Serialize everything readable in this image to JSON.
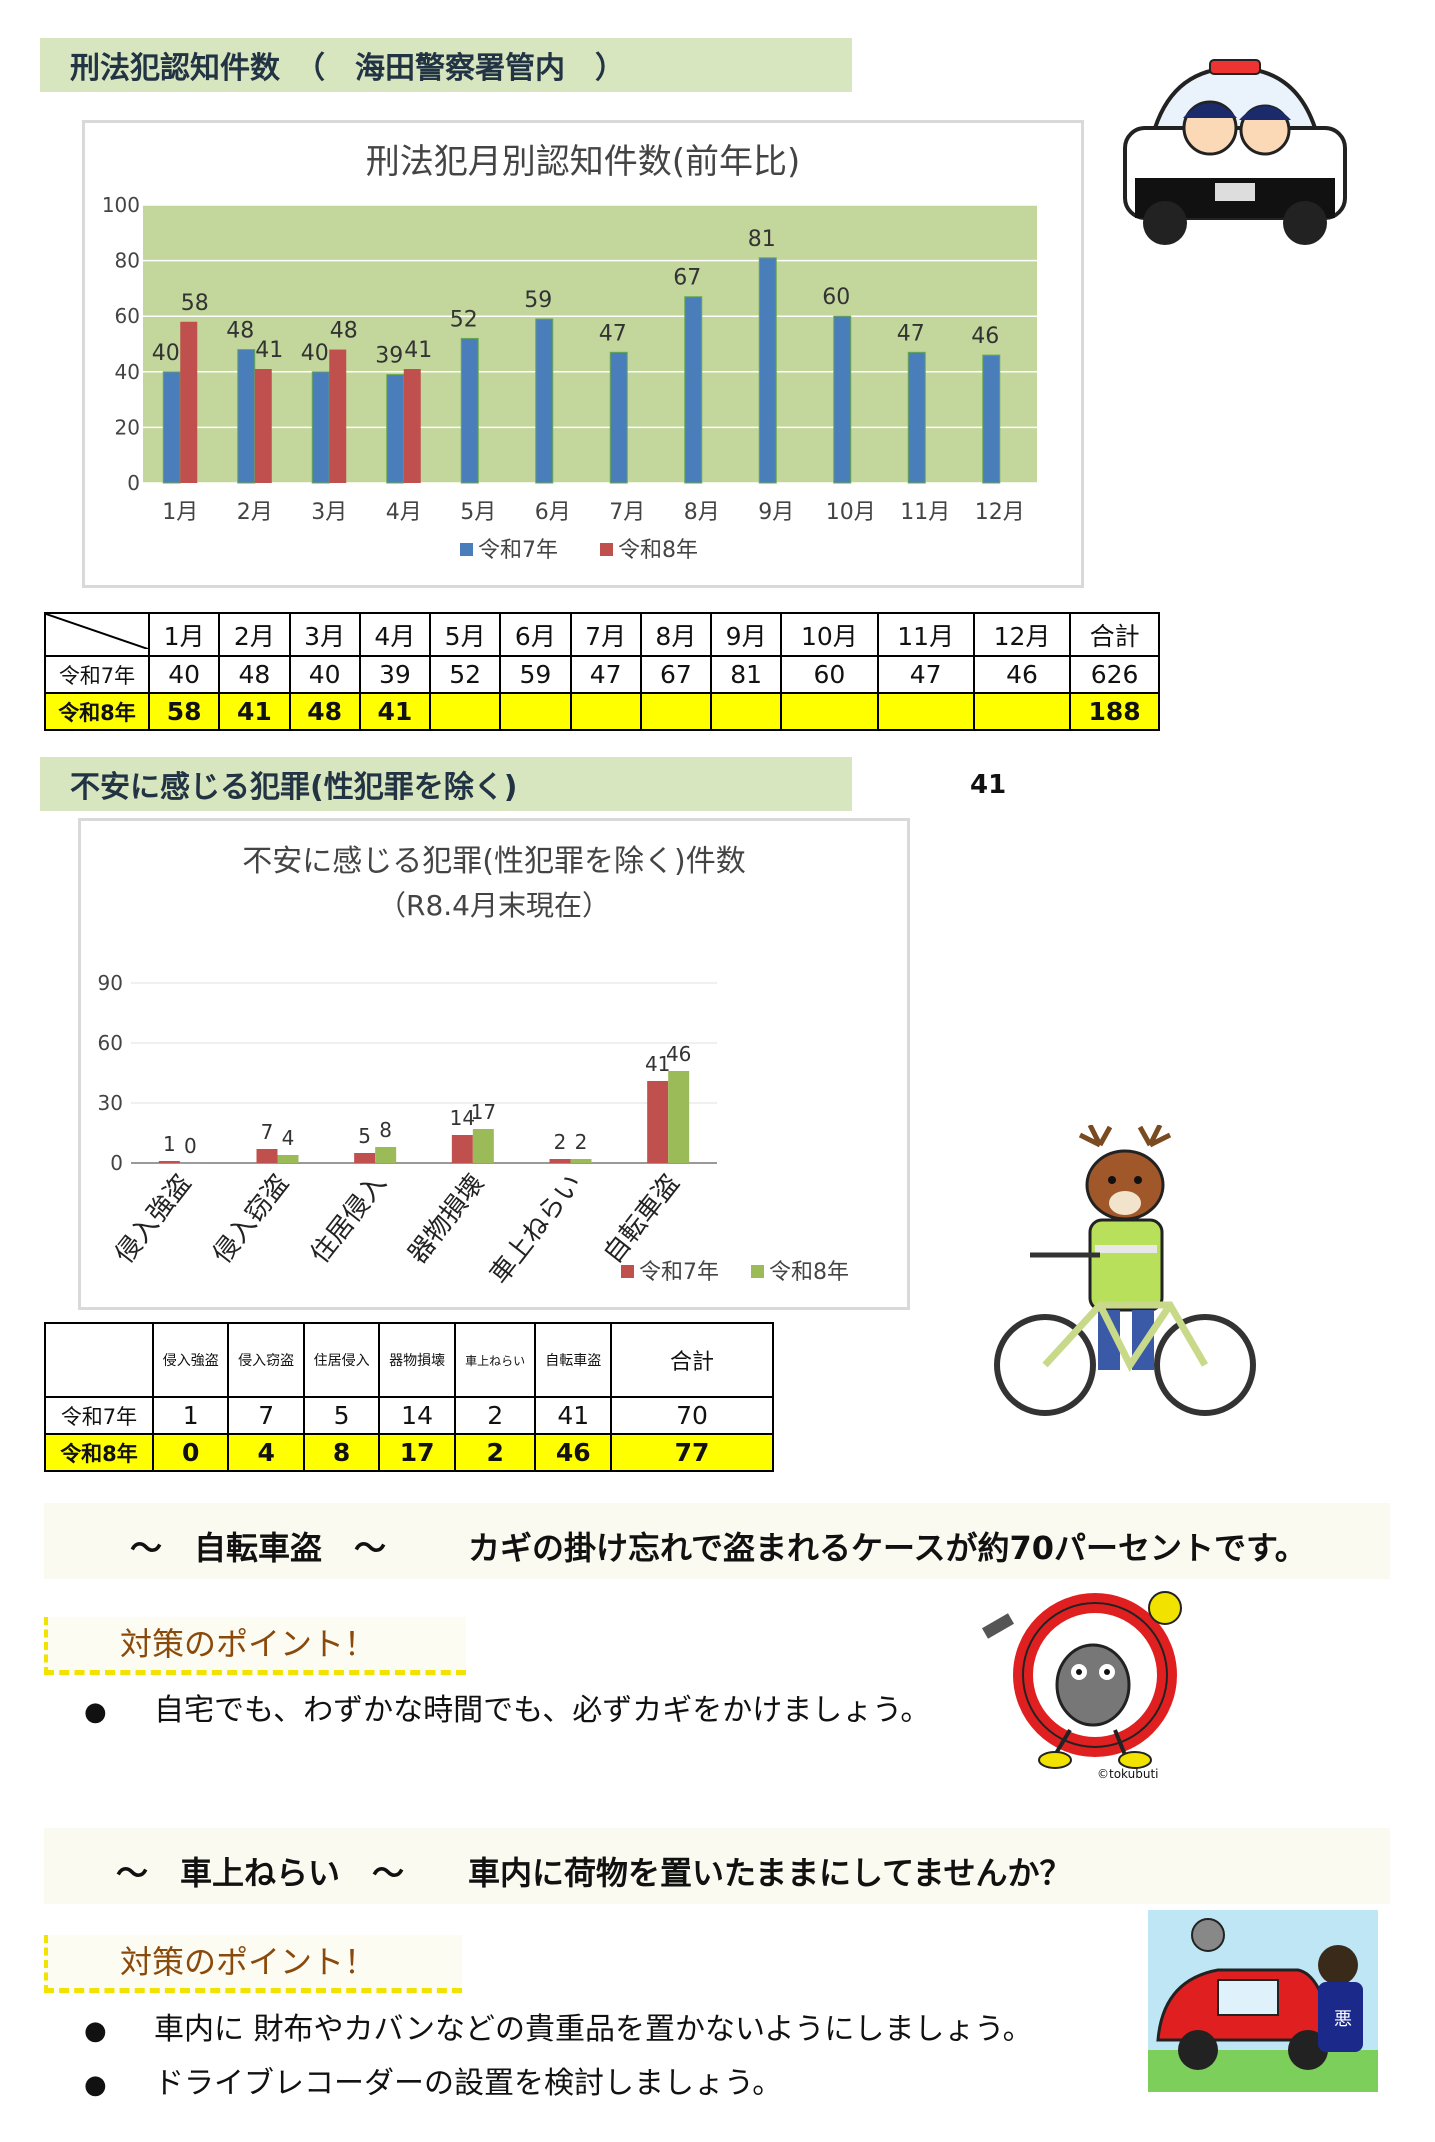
{
  "section1": {
    "heading": "刑法犯認知件数　（　海田警察署管内　）"
  },
  "chart_data": [
    {
      "type": "bar",
      "title": "刑法犯月別認知件数(前年比)",
      "categories": [
        "1月",
        "2月",
        "3月",
        "4月",
        "5月",
        "6月",
        "7月",
        "8月",
        "9月",
        "10月",
        "11月",
        "12月"
      ],
      "series": [
        {
          "name": "令和7年",
          "values": [
            40,
            48,
            40,
            39,
            52,
            59,
            47,
            67,
            81,
            60,
            47,
            46
          ],
          "color": "#4a7ebb"
        },
        {
          "name": "令和8年",
          "values": [
            58,
            41,
            48,
            41,
            null,
            null,
            null,
            null,
            null,
            null,
            null,
            null
          ],
          "color": "#c0504d"
        }
      ],
      "ylim": [
        0,
        100
      ],
      "yticks": [
        0,
        20,
        40,
        60,
        80,
        100
      ],
      "legend": "bottom",
      "plot_bg": "#c3d69b",
      "grid": true
    },
    {
      "type": "bar",
      "title": "不安に感じる犯罪(性犯罪を除く)件数",
      "subtitle": "（R8.4月末現在）",
      "categories": [
        "侵入強盗",
        "侵入窃盗",
        "住居侵入",
        "器物損壊",
        "車上ねらい",
        "自転車盗"
      ],
      "series": [
        {
          "name": "令和7年",
          "values": [
            1,
            7,
            5,
            14,
            2,
            41
          ],
          "color": "#c0504d"
        },
        {
          "name": "令和8年",
          "values": [
            0,
            4,
            8,
            17,
            2,
            46
          ],
          "color": "#9bbb59"
        }
      ],
      "ylim": [
        0,
        90
      ],
      "yticks": [
        0,
        30,
        60,
        90
      ],
      "legend": "bottom-right",
      "grid": true
    }
  ],
  "table1": {
    "headers": [
      "1月",
      "2月",
      "3月",
      "4月",
      "5月",
      "6月",
      "7月",
      "8月",
      "9月",
      "10月",
      "11月",
      "12月",
      "合計"
    ],
    "rows": [
      {
        "label": "令和7年",
        "cells": [
          "40",
          "48",
          "40",
          "39",
          "52",
          "59",
          "47",
          "67",
          "81",
          "60",
          "47",
          "46",
          "626"
        ]
      },
      {
        "label": "令和8年",
        "cells": [
          "58",
          "41",
          "48",
          "41",
          "",
          "",
          "",
          "",
          "",
          "",
          "",
          "",
          "188"
        ]
      }
    ]
  },
  "section2": {
    "heading": "不安に感じる犯罪(性犯罪を除く)",
    "stray_number": "41"
  },
  "table2": {
    "headers": [
      "侵入強盗",
      "侵入窃盗",
      "住居侵入",
      "器物損壊",
      "車上ねらい",
      "自転車盗",
      "合計"
    ],
    "rows": [
      {
        "label": "令和7年",
        "cells": [
          "1",
          "7",
          "5",
          "14",
          "2",
          "41",
          "70"
        ]
      },
      {
        "label": "令和8年",
        "cells": [
          "0",
          "4",
          "8",
          "17",
          "2",
          "46",
          "77"
        ]
      }
    ]
  },
  "bicycle": {
    "banner_title": "～　自転車盗　～",
    "banner_text": "カギの掛け忘れで盗まれるケースが約70パーセントです。",
    "point_heading": "対策のポイント！",
    "bullets": [
      "自宅でも、わずかな時間でも、必ずカギをかけましょう。"
    ],
    "credit": "©tokubuti"
  },
  "car": {
    "banner_title": "～　車上ねらい　～",
    "banner_text": "車内に荷物を置いたままにしてませんか？",
    "point_heading": "対策のポイント！",
    "bullets": [
      "車内に 財布やカバンなどの貴重品を置かないようにしましょう。",
      "ドライブレコーダーの設置を検討しましょう。"
    ],
    "thief_badge": "悪"
  },
  "bullet_glyph": "●"
}
